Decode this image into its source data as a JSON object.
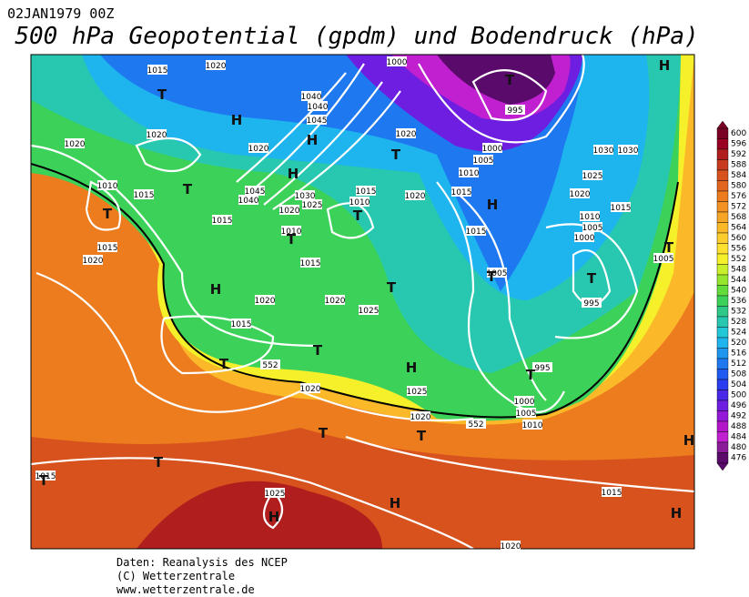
{
  "header": {
    "timestamp": "02JAN1979 00Z",
    "title": "500 hPa Geopotential (gpdm) und Bodendruck (hPa)"
  },
  "footer": {
    "source": "Daten: Reanalysis des NCEP",
    "copyright": "(C) Wetterzentrale",
    "url": "www.wetterzentrale.de"
  },
  "isobar_labels": [
    "1015",
    "1020",
    "1000",
    "995",
    "1020",
    "1020",
    "1040",
    "1040",
    "1045",
    "1020",
    "1020",
    "1000",
    "1005",
    "1010",
    "1030",
    "1030",
    "1025",
    "1010",
    "1015",
    "1045",
    "1040",
    "1030",
    "1025",
    "1015",
    "1010",
    "1020",
    "1015",
    "1020",
    "1015",
    "1015",
    "1020",
    "1010",
    "1010",
    "1005",
    "1000",
    "1015",
    "1015",
    "1020",
    "1005",
    "1015",
    "1005",
    "995",
    "1020",
    "1020",
    "1025",
    "1015",
    "552",
    "995",
    "1020",
    "1025",
    "1000",
    "1005",
    "1010",
    "1020",
    "552",
    "1015",
    "1025",
    "1015",
    "1020"
  ],
  "pressure_centers": [
    "T",
    "H",
    "T",
    "H",
    "H",
    "T",
    "T",
    "H",
    "T",
    "T",
    "H",
    "T",
    "T",
    "H",
    "T",
    "T",
    "T",
    "T",
    "T",
    "H",
    "T",
    "T",
    "T",
    "T",
    "T",
    "H",
    "H",
    "H",
    "H"
  ],
  "colorbar": {
    "levels": [
      600,
      596,
      592,
      588,
      584,
      580,
      576,
      572,
      568,
      564,
      560,
      556,
      552,
      548,
      544,
      540,
      536,
      532,
      528,
      524,
      520,
      516,
      512,
      508,
      504,
      500,
      496,
      492,
      488,
      484,
      480,
      476
    ],
    "colors": [
      "#7a0026",
      "#990022",
      "#b01e1e",
      "#c83a1e",
      "#d8521e",
      "#e3661e",
      "#ec7c1e",
      "#f39222",
      "#f7a526",
      "#fbb92a",
      "#fdcc2e",
      "#fde030",
      "#f5f02a",
      "#c8ef2a",
      "#96e62e",
      "#62dc3a",
      "#3cd25a",
      "#2ec888",
      "#28c8b0",
      "#22c8d8",
      "#1eb4ee",
      "#1e96f0",
      "#1e78f0",
      "#1e5af0",
      "#2a3cf0",
      "#4a28e8",
      "#6e1ee0",
      "#9418d8",
      "#b414c8",
      "#c020d0",
      "#8a1c9a",
      "#5a0a6a"
    ]
  }
}
